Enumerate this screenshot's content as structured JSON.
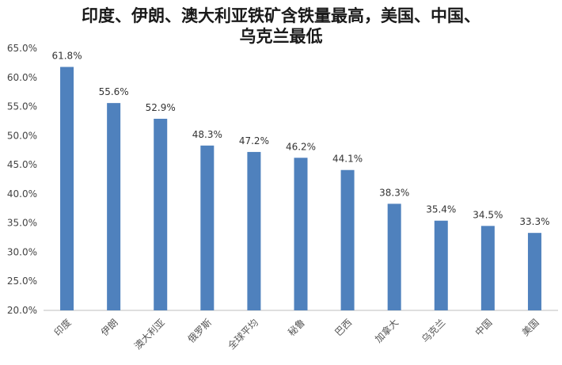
{
  "chart_data": {
    "type": "bar",
    "title_lines": [
      "印度、伊朗、澳大利亚铁矿含铁量最高，美国、中国、",
      "乌克兰最低"
    ],
    "categories": [
      "印度",
      "伊朗",
      "澳大利亚",
      "俄罗斯",
      "全球平均",
      "秘鲁",
      "巴西",
      "加拿大",
      "乌克兰",
      "中国",
      "美国"
    ],
    "values": [
      61.8,
      55.6,
      52.9,
      48.3,
      47.2,
      46.2,
      44.1,
      38.3,
      35.4,
      34.5,
      33.3
    ],
    "value_labels": [
      "61.8%",
      "55.6%",
      "52.9%",
      "48.3%",
      "47.2%",
      "46.2%",
      "44.1%",
      "38.3%",
      "35.4%",
      "34.5%",
      "33.3%"
    ],
    "yticks": [
      20,
      25,
      30,
      35,
      40,
      45,
      50,
      55,
      60,
      65
    ],
    "ytick_labels": [
      "20.0%",
      "25.0%",
      "30.0%",
      "35.0%",
      "40.0%",
      "45.0%",
      "50.0%",
      "55.0%",
      "60.0%",
      "65.0%"
    ],
    "ylim": [
      20,
      65
    ],
    "grid": false,
    "legend": "none",
    "bar_color": "#4f81bd"
  }
}
